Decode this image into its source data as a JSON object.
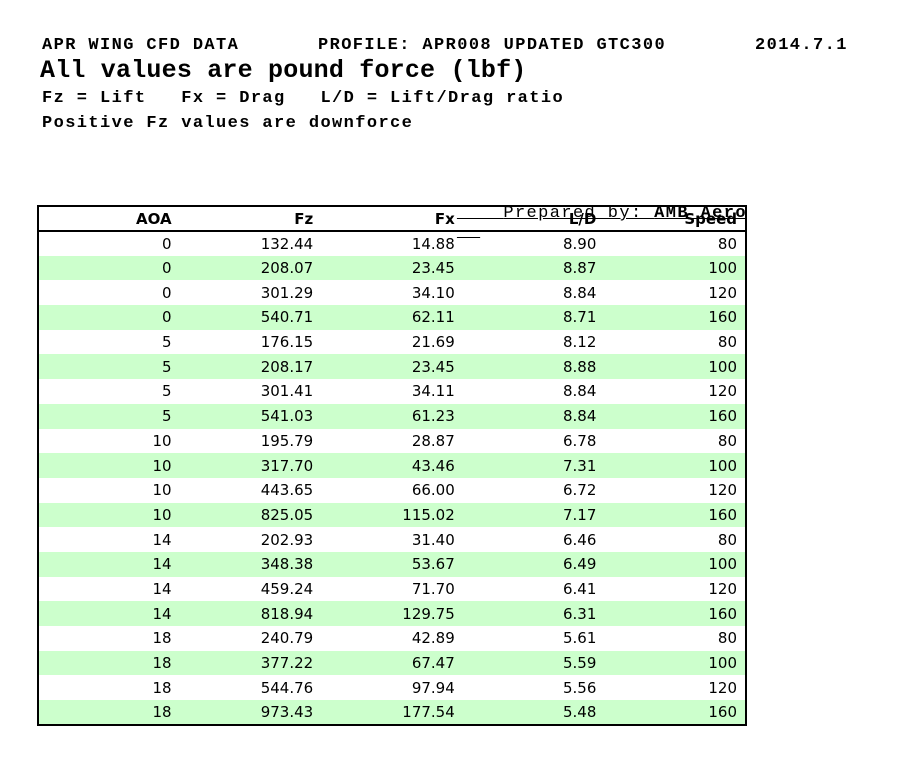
{
  "header": {
    "title": "APR WING CFD DATA",
    "profile": "PROFILE: APR008 UPDATED GTC300",
    "date": "2014.7.1",
    "units_note": "All values are pound force (lbf)",
    "legend_note": "Fz = Lift   Fx = Drag   L/D = Lift/Drag ratio",
    "downforce_note": "Positive Fz values are downforce"
  },
  "prepared_by": {
    "label": "Prepared by: ",
    "value": "AMB Aero"
  },
  "table": {
    "columns": [
      "AOA",
      "Fz",
      "Fx",
      "L/D",
      "Speed"
    ],
    "rows": [
      [
        "0",
        "132.44",
        "14.88",
        "8.90",
        "80"
      ],
      [
        "0",
        "208.07",
        "23.45",
        "8.87",
        "100"
      ],
      [
        "0",
        "301.29",
        "34.10",
        "8.84",
        "120"
      ],
      [
        "0",
        "540.71",
        "62.11",
        "8.71",
        "160"
      ],
      [
        "5",
        "176.15",
        "21.69",
        "8.12",
        "80"
      ],
      [
        "5",
        "208.17",
        "23.45",
        "8.88",
        "100"
      ],
      [
        "5",
        "301.41",
        "34.11",
        "8.84",
        "120"
      ],
      [
        "5",
        "541.03",
        "61.23",
        "8.84",
        "160"
      ],
      [
        "10",
        "195.79",
        "28.87",
        "6.78",
        "80"
      ],
      [
        "10",
        "317.70",
        "43.46",
        "7.31",
        "100"
      ],
      [
        "10",
        "443.65",
        "66.00",
        "6.72",
        "120"
      ],
      [
        "10",
        "825.05",
        "115.02",
        "7.17",
        "160"
      ],
      [
        "14",
        "202.93",
        "31.40",
        "6.46",
        "80"
      ],
      [
        "14",
        "348.38",
        "53.67",
        "6.49",
        "100"
      ],
      [
        "14",
        "459.24",
        "71.70",
        "6.41",
        "120"
      ],
      [
        "14",
        "818.94",
        "129.75",
        "6.31",
        "160"
      ],
      [
        "18",
        "240.79",
        "42.89",
        "5.61",
        "80"
      ],
      [
        "18",
        "377.22",
        "67.47",
        "5.59",
        "100"
      ],
      [
        "18",
        "544.76",
        "97.94",
        "5.56",
        "120"
      ],
      [
        "18",
        "973.43",
        "177.54",
        "5.48",
        "160"
      ]
    ]
  },
  "colors": {
    "row_stripe": "#ccffcc",
    "table_border": "#000000"
  }
}
